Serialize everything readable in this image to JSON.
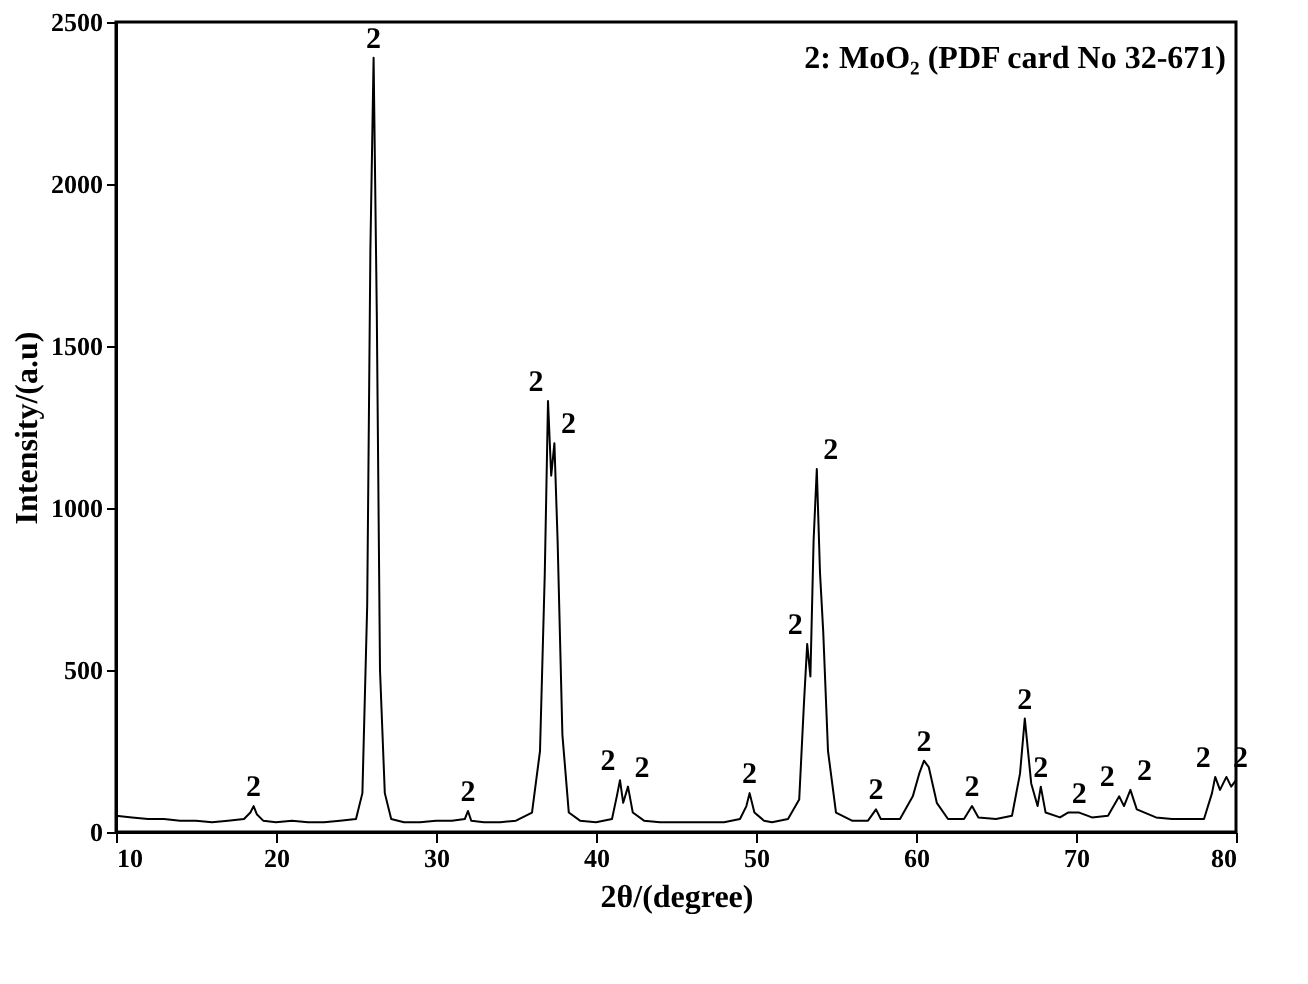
{
  "chart_data": {
    "type": "line",
    "xlabel": "2θ/(degree)",
    "ylabel": "Intensity/(a.u)",
    "x": [
      10,
      11,
      12,
      13,
      14,
      15,
      16,
      17,
      18,
      18.4,
      18.6,
      18.8,
      19.2,
      20,
      21,
      22,
      23,
      24,
      25,
      25.4,
      25.7,
      25.9,
      26.1,
      26.3,
      26.5,
      26.8,
      27.2,
      28,
      29,
      30,
      31,
      31.8,
      32.0,
      32.2,
      33,
      34,
      35,
      36,
      36.5,
      36.8,
      37.0,
      37.2,
      37.4,
      37.6,
      37.9,
      38.3,
      39,
      40,
      41,
      41.3,
      41.5,
      41.7,
      42.0,
      42.3,
      43,
      44,
      45,
      46,
      47,
      48,
      49,
      49.4,
      49.6,
      49.9,
      50.5,
      51,
      52,
      52.7,
      53.0,
      53.2,
      53.4,
      53.6,
      53.8,
      54.0,
      54.2,
      54.5,
      55,
      56,
      57,
      57.5,
      57.8,
      59,
      59.8,
      60.2,
      60.5,
      60.8,
      61.3,
      62,
      63,
      63.5,
      63.9,
      65,
      66,
      66.5,
      66.8,
      67.2,
      67.6,
      67.8,
      68.1,
      69,
      69.5,
      70.2,
      71,
      72,
      72.7,
      73.0,
      73.4,
      73.8,
      75,
      76,
      77,
      78,
      78.5,
      78.7,
      79.0,
      79.4,
      79.7,
      80
    ],
    "series": [
      {
        "color": "#000000",
        "values": [
          50,
          45,
          40,
          40,
          35,
          35,
          30,
          35,
          40,
          60,
          80,
          55,
          35,
          30,
          35,
          30,
          30,
          35,
          40,
          120,
          700,
          1800,
          2390,
          1600,
          500,
          120,
          40,
          30,
          30,
          35,
          35,
          40,
          65,
          35,
          30,
          30,
          35,
          60,
          250,
          800,
          1330,
          1100,
          1200,
          900,
          300,
          60,
          35,
          30,
          40,
          110,
          160,
          90,
          140,
          60,
          35,
          30,
          30,
          30,
          30,
          30,
          40,
          80,
          120,
          60,
          35,
          30,
          40,
          100,
          400,
          580,
          480,
          900,
          1120,
          800,
          620,
          250,
          60,
          35,
          35,
          70,
          40,
          40,
          110,
          180,
          220,
          200,
          90,
          40,
          40,
          80,
          45,
          40,
          50,
          180,
          350,
          150,
          80,
          140,
          60,
          45,
          60,
          60,
          45,
          50,
          110,
          80,
          130,
          70,
          45,
          40,
          40,
          40,
          120,
          170,
          130,
          170,
          140,
          160
        ]
      }
    ],
    "xlim": [
      10,
      80
    ],
    "ylim": [
      0,
      2500
    ],
    "xticks": [
      10,
      20,
      30,
      40,
      50,
      60,
      70,
      80
    ],
    "yticks": [
      0,
      500,
      1000,
      1500,
      2000,
      2500
    ],
    "grid": false,
    "annotations": [
      "2: MoO₂ (PDF card No 32-671)",
      {
        "text": "2",
        "x": 18.6,
        "y": 80
      },
      {
        "text": "2",
        "x": 26.1,
        "y": 2390
      },
      {
        "text": "2",
        "x": 32.0,
        "y": 65
      },
      {
        "text": "2",
        "x": 37.0,
        "y": 1330
      },
      {
        "text": "2",
        "x": 37.4,
        "y": 1200
      },
      {
        "text": "2",
        "x": 41.5,
        "y": 160
      },
      {
        "text": "2",
        "x": 42.0,
        "y": 140
      },
      {
        "text": "2",
        "x": 49.6,
        "y": 120
      },
      {
        "text": "2",
        "x": 53.2,
        "y": 580
      },
      {
        "text": "2",
        "x": 53.8,
        "y": 1120
      },
      {
        "text": "2",
        "x": 57.5,
        "y": 70
      },
      {
        "text": "2",
        "x": 60.5,
        "y": 220
      },
      {
        "text": "2",
        "x": 63.5,
        "y": 80
      },
      {
        "text": "2",
        "x": 66.8,
        "y": 350
      },
      {
        "text": "2",
        "x": 67.8,
        "y": 140
      },
      {
        "text": "2",
        "x": 70.2,
        "y": 60
      },
      {
        "text": "2",
        "x": 72.7,
        "y": 110
      },
      {
        "text": "2",
        "x": 73.4,
        "y": 130
      },
      {
        "text": "2",
        "x": 78.7,
        "y": 170
      },
      {
        "text": "2",
        "x": 79.4,
        "y": 170
      }
    ]
  }
}
